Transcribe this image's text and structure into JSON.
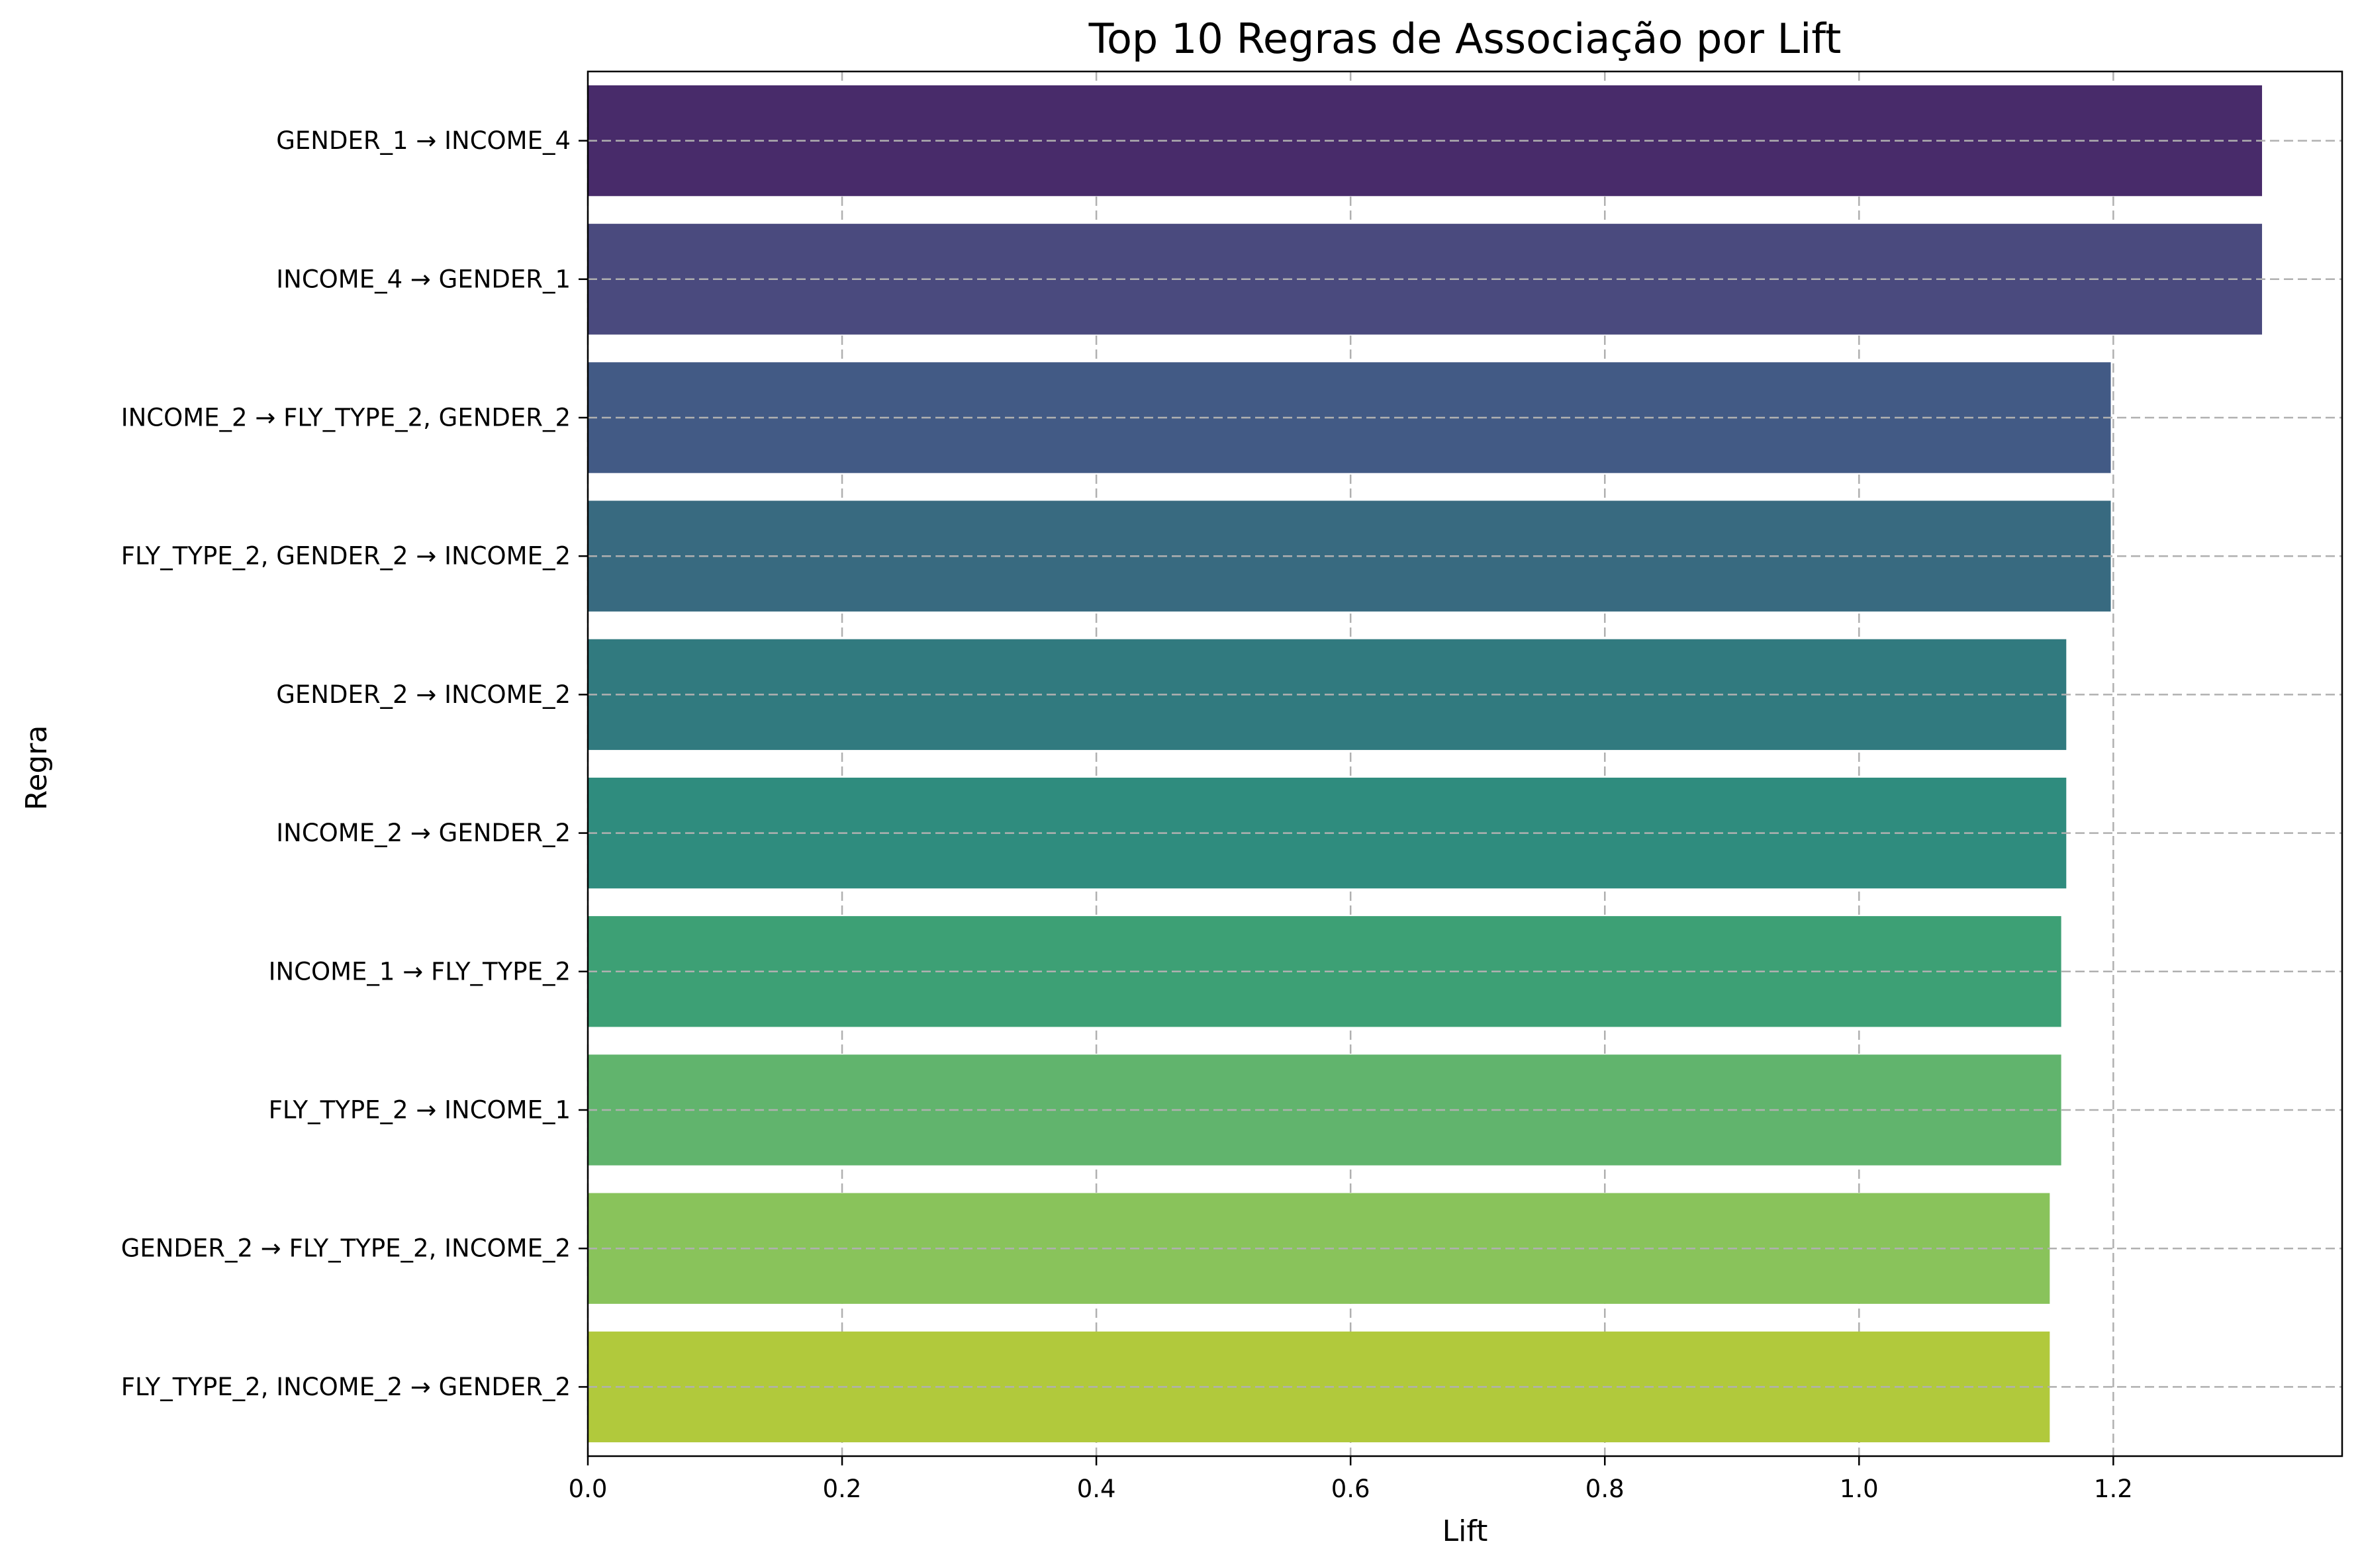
{
  "chart_data": {
    "type": "bar",
    "orientation": "horizontal",
    "title": "Top 10 Regras de Associação por Lift",
    "xlabel": "Lift",
    "ylabel": "Regra",
    "xlim": [
      0,
      1.38
    ],
    "xticks": [
      "0.0",
      "0.2",
      "0.4",
      "0.6",
      "0.8",
      "1.0",
      "1.2"
    ],
    "grid": true,
    "categories": [
      "GENDER_1 → INCOME_4",
      "INCOME_4 → GENDER_1",
      "INCOME_2 → FLY_TYPE_2, GENDER_2",
      "FLY_TYPE_2, GENDER_2 → INCOME_2",
      "GENDER_2 → INCOME_2",
      "INCOME_2 → GENDER_2",
      "INCOME_1 → FLY_TYPE_2",
      "FLY_TYPE_2 → INCOME_1",
      "GENDER_2 → FLY_TYPE_2, INCOME_2",
      "FLY_TYPE_2, INCOME_2 → GENDER_2"
    ],
    "values": [
      1.317,
      1.317,
      1.198,
      1.198,
      1.163,
      1.163,
      1.159,
      1.159,
      1.15,
      1.15
    ],
    "colors": [
      "#482b6a",
      "#4a4a7e",
      "#425a85",
      "#386a80",
      "#317a7f",
      "#2f8c7e",
      "#3da075",
      "#61b46d",
      "#89c35b",
      "#b1c93c"
    ]
  }
}
